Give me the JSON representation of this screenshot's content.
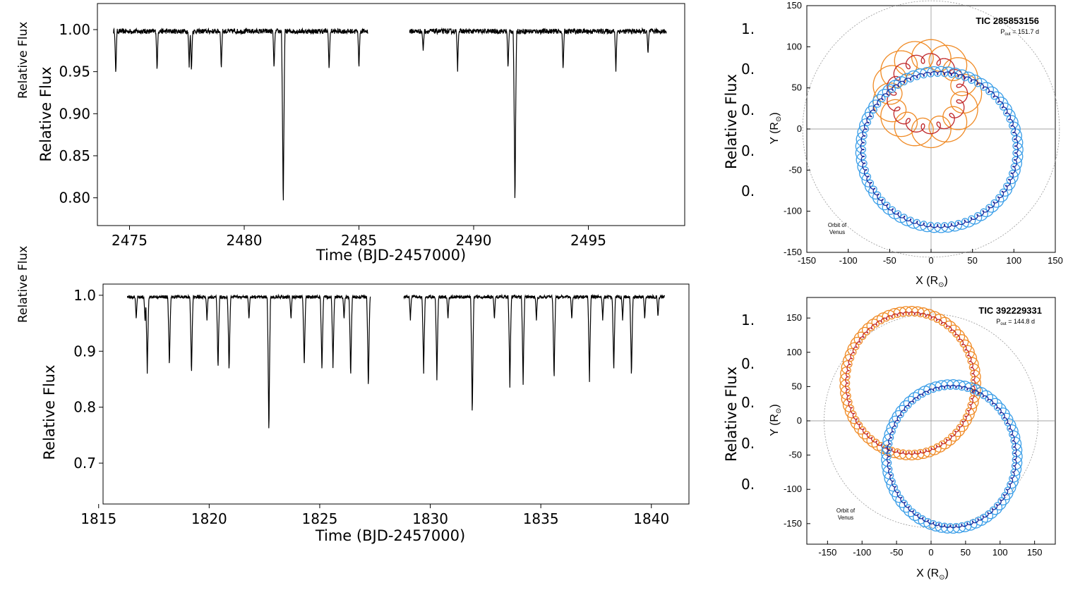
{
  "chart_data": [
    {
      "type": "line",
      "xlabel": "Time (BJD-2457000)",
      "ylabel": "Relative Flux",
      "xlim": [
        2473.6,
        2499.2
      ],
      "ylim": [
        0.767,
        1.031
      ],
      "xticks": [
        "2475",
        "2480",
        "2485",
        "2490",
        "2495"
      ],
      "yticks": [
        "1.00",
        "0.95",
        "0.90",
        "0.85",
        "0.80"
      ],
      "segments": [
        [
          2474.3,
          2485.4
        ],
        [
          2487.2,
          2498.4
        ]
      ],
      "baseline": 0.998,
      "dips": [
        {
          "t": 2474.4,
          "depth": 0.945
        },
        {
          "t": 2476.2,
          "depth": 0.949
        },
        {
          "t": 2477.6,
          "depth": 0.955
        },
        {
          "t": 2477.7,
          "depth": 0.948
        },
        {
          "t": 2479.0,
          "depth": 0.951
        },
        {
          "t": 2481.3,
          "depth": 0.952
        },
        {
          "t": 2481.7,
          "depth": 0.782
        },
        {
          "t": 2483.7,
          "depth": 0.95
        },
        {
          "t": 2485.0,
          "depth": 0.952
        },
        {
          "t": 2487.8,
          "depth": 0.975
        },
        {
          "t": 2489.3,
          "depth": 0.95
        },
        {
          "t": 2491.5,
          "depth": 0.952
        },
        {
          "t": 2491.8,
          "depth": 0.785
        },
        {
          "t": 2493.9,
          "depth": 0.95
        },
        {
          "t": 2496.2,
          "depth": 0.95
        },
        {
          "t": 2497.6,
          "depth": 0.97
        }
      ]
    },
    {
      "type": "line",
      "xlabel": "Time (BJD-2457000)",
      "ylabel": "Relative Flux",
      "xlim": [
        1815.2,
        1841.7
      ],
      "ylim": [
        0.627,
        1.02
      ],
      "xticks": [
        "1815",
        "1820",
        "1825",
        "1830",
        "1835",
        "1840"
      ],
      "yticks": [
        "1.0",
        "0.9",
        "0.8",
        "0.7"
      ],
      "segments": [
        [
          1816.3,
          1827.3
        ],
        [
          1828.8,
          1840.6
        ]
      ],
      "baseline": 0.997,
      "dips": [
        {
          "t": 1816.7,
          "depth": 0.955
        },
        {
          "t": 1817.2,
          "depth": 0.86
        },
        {
          "t": 1817.1,
          "depth": 0.95
        },
        {
          "t": 1818.2,
          "depth": 0.87
        },
        {
          "t": 1819.2,
          "depth": 0.855
        },
        {
          "t": 1819.9,
          "depth": 0.955
        },
        {
          "t": 1820.4,
          "depth": 0.865
        },
        {
          "t": 1820.9,
          "depth": 0.86
        },
        {
          "t": 1821.8,
          "depth": 0.955
        },
        {
          "t": 1822.7,
          "depth": 0.745
        },
        {
          "t": 1823.7,
          "depth": 0.955
        },
        {
          "t": 1824.3,
          "depth": 0.87
        },
        {
          "t": 1825.1,
          "depth": 0.86
        },
        {
          "t": 1825.6,
          "depth": 0.87
        },
        {
          "t": 1826.1,
          "depth": 0.955
        },
        {
          "t": 1826.4,
          "depth": 0.85
        },
        {
          "t": 1827.2,
          "depth": 0.83
        },
        {
          "t": 1829.1,
          "depth": 0.955
        },
        {
          "t": 1829.7,
          "depth": 0.86
        },
        {
          "t": 1830.3,
          "depth": 0.848
        },
        {
          "t": 1830.8,
          "depth": 0.955
        },
        {
          "t": 1831.9,
          "depth": 0.779
        },
        {
          "t": 1832.9,
          "depth": 0.955
        },
        {
          "t": 1833.6,
          "depth": 0.835
        },
        {
          "t": 1834.2,
          "depth": 0.84
        },
        {
          "t": 1834.8,
          "depth": 0.955
        },
        {
          "t": 1835.6,
          "depth": 0.845
        },
        {
          "t": 1836.4,
          "depth": 0.955
        },
        {
          "t": 1837.2,
          "depth": 0.845
        },
        {
          "t": 1837.8,
          "depth": 0.955
        },
        {
          "t": 1838.3,
          "depth": 0.86
        },
        {
          "t": 1838.7,
          "depth": 0.955
        },
        {
          "t": 1839.1,
          "depth": 0.85
        },
        {
          "t": 1839.7,
          "depth": 0.955
        },
        {
          "t": 1840.3,
          "depth": 0.96
        }
      ]
    },
    {
      "type": "line",
      "title": "TIC 285853156",
      "annotation_sub": "out",
      "annotation_value": " = 151.7 d",
      "note_line1": "Orbit of",
      "note_line2": "Venus",
      "xlabel": "X (R",
      "ylabel": "Y (R",
      "label_sub": "⊙",
      "xlim": [
        -150,
        150
      ],
      "ylim": [
        -150,
        150
      ],
      "xticks": [
        "-150",
        "-100",
        "-50",
        "0",
        "50",
        "100",
        "150"
      ],
      "yticks": [
        "150",
        "100",
        "50",
        "0",
        "-50",
        "-100",
        "-150"
      ],
      "venus_radius": 155,
      "series": [
        {
          "color": "#f08a24",
          "cx": -5,
          "cy": 43,
          "R": 48,
          "loop_r": 18,
          "loops": 14
        },
        {
          "color": "#c0282a",
          "cx": -5,
          "cy": 43,
          "R": 43,
          "loop_r": 6,
          "loops": 14
        },
        {
          "color": "#3a9ee8",
          "cx": 10,
          "cy": -25,
          "R": 95,
          "loop_r": 6,
          "loops": 70
        },
        {
          "color": "#1a2a9c",
          "cx": 10,
          "cy": -25,
          "R": 93,
          "loop_r": 2,
          "loops": 70
        }
      ]
    },
    {
      "type": "line",
      "title": "TIC 392229331",
      "annotation_sub": "out",
      "annotation_value": " = 144.8 d",
      "note_line1": "Orbit of",
      "note_line2": "Venus",
      "xlabel": "X (R",
      "ylabel": "Y (R",
      "label_sub": "⊙",
      "xlim": [
        -180,
        180
      ],
      "ylim": [
        -180,
        180
      ],
      "xticks": [
        "-150",
        "-100",
        "-50",
        "0",
        "50",
        "100",
        "150"
      ],
      "yticks": [
        "150",
        "100",
        "50",
        "0",
        "-50",
        "-100",
        "-150"
      ],
      "venus_radius": 155,
      "series": [
        {
          "color": "#f08a24",
          "cx": -30,
          "cy": 55,
          "rx": 95,
          "ry": 105,
          "loop_r": 7,
          "loops": 70
        },
        {
          "color": "#c0282a",
          "cx": -30,
          "cy": 55,
          "rx": 92,
          "ry": 102,
          "loop_r": 2,
          "loops": 70
        },
        {
          "color": "#3a9ee8",
          "cx": 30,
          "cy": -52,
          "rx": 95,
          "ry": 105,
          "loop_r": 7,
          "loops": 70
        },
        {
          "color": "#1a2a9c",
          "cx": 30,
          "cy": -52,
          "rx": 92,
          "ry": 102,
          "loop_r": 2,
          "loops": 70
        }
      ]
    }
  ],
  "side_labels": {
    "top": "Relative Flux",
    "middle": "Relative Flux",
    "ghost_ylabel": "Relative Flux",
    "ghost_ticks_top": [
      "1.",
      "0.",
      "0.",
      "0.",
      "0."
    ],
    "ghost_ticks_bottom": [
      "1.",
      "0.",
      "0.",
      "0.",
      "0."
    ]
  }
}
